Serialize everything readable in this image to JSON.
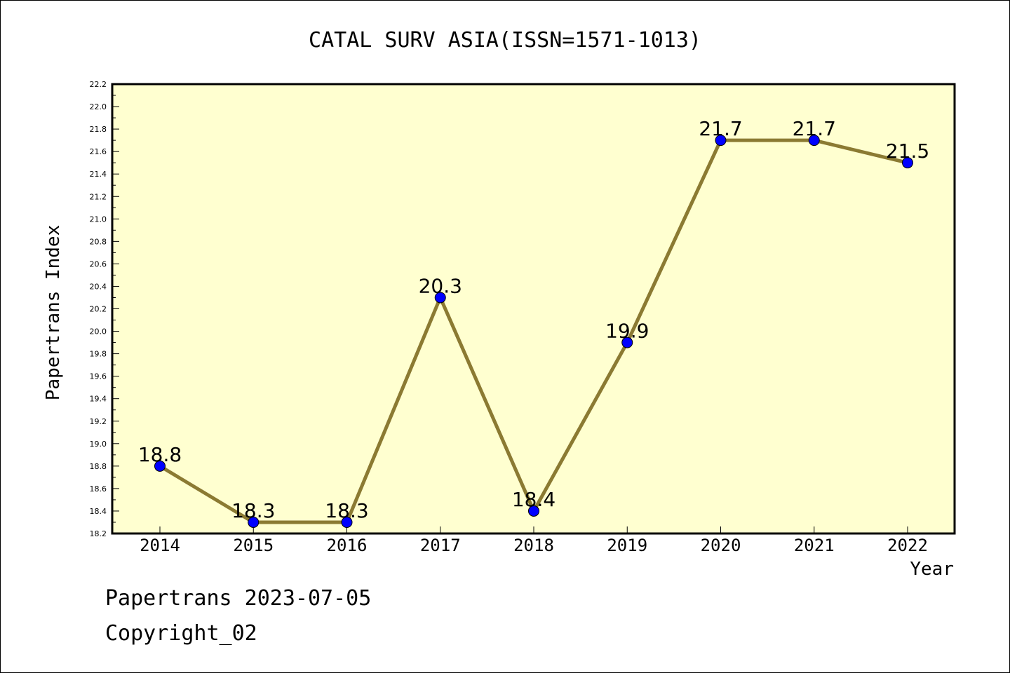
{
  "chart_data": {
    "type": "line",
    "title": "CATAL SURV ASIA(ISSN=1571-1013)",
    "xlabel": "Year",
    "ylabel": "Papertrans Index",
    "categories": [
      "2014",
      "2015",
      "2016",
      "2017",
      "2018",
      "2019",
      "2020",
      "2021",
      "2022"
    ],
    "series": [
      {
        "values": [
          18.8,
          18.3,
          18.3,
          20.3,
          18.4,
          19.9,
          21.7,
          21.7,
          21.5
        ],
        "data_labels": [
          "18.8",
          "18.3",
          "18.3",
          "20.3",
          "18.4",
          "19.9",
          "21.7",
          "21.7",
          "21.5"
        ]
      }
    ],
    "ylim": [
      18.2,
      22.2
    ],
    "yticks": [
      "18.2",
      "18.4",
      "18.6",
      "18.8",
      "19.0",
      "19.2",
      "19.4",
      "19.6",
      "19.8",
      "20.0",
      "20.2",
      "20.4",
      "20.6",
      "20.8",
      "21.0",
      "21.2",
      "21.4",
      "21.6",
      "21.8",
      "22.0",
      "22.2"
    ],
    "grid": false,
    "legend": "none",
    "colors": {
      "plot_background": "#ffffd0",
      "line": "#8b7a32",
      "marker": "#0000ff",
      "axis": "#000000"
    }
  },
  "footer": {
    "date_line": "Papertrans 2023-07-05",
    "copyright": "Copyright_02"
  }
}
